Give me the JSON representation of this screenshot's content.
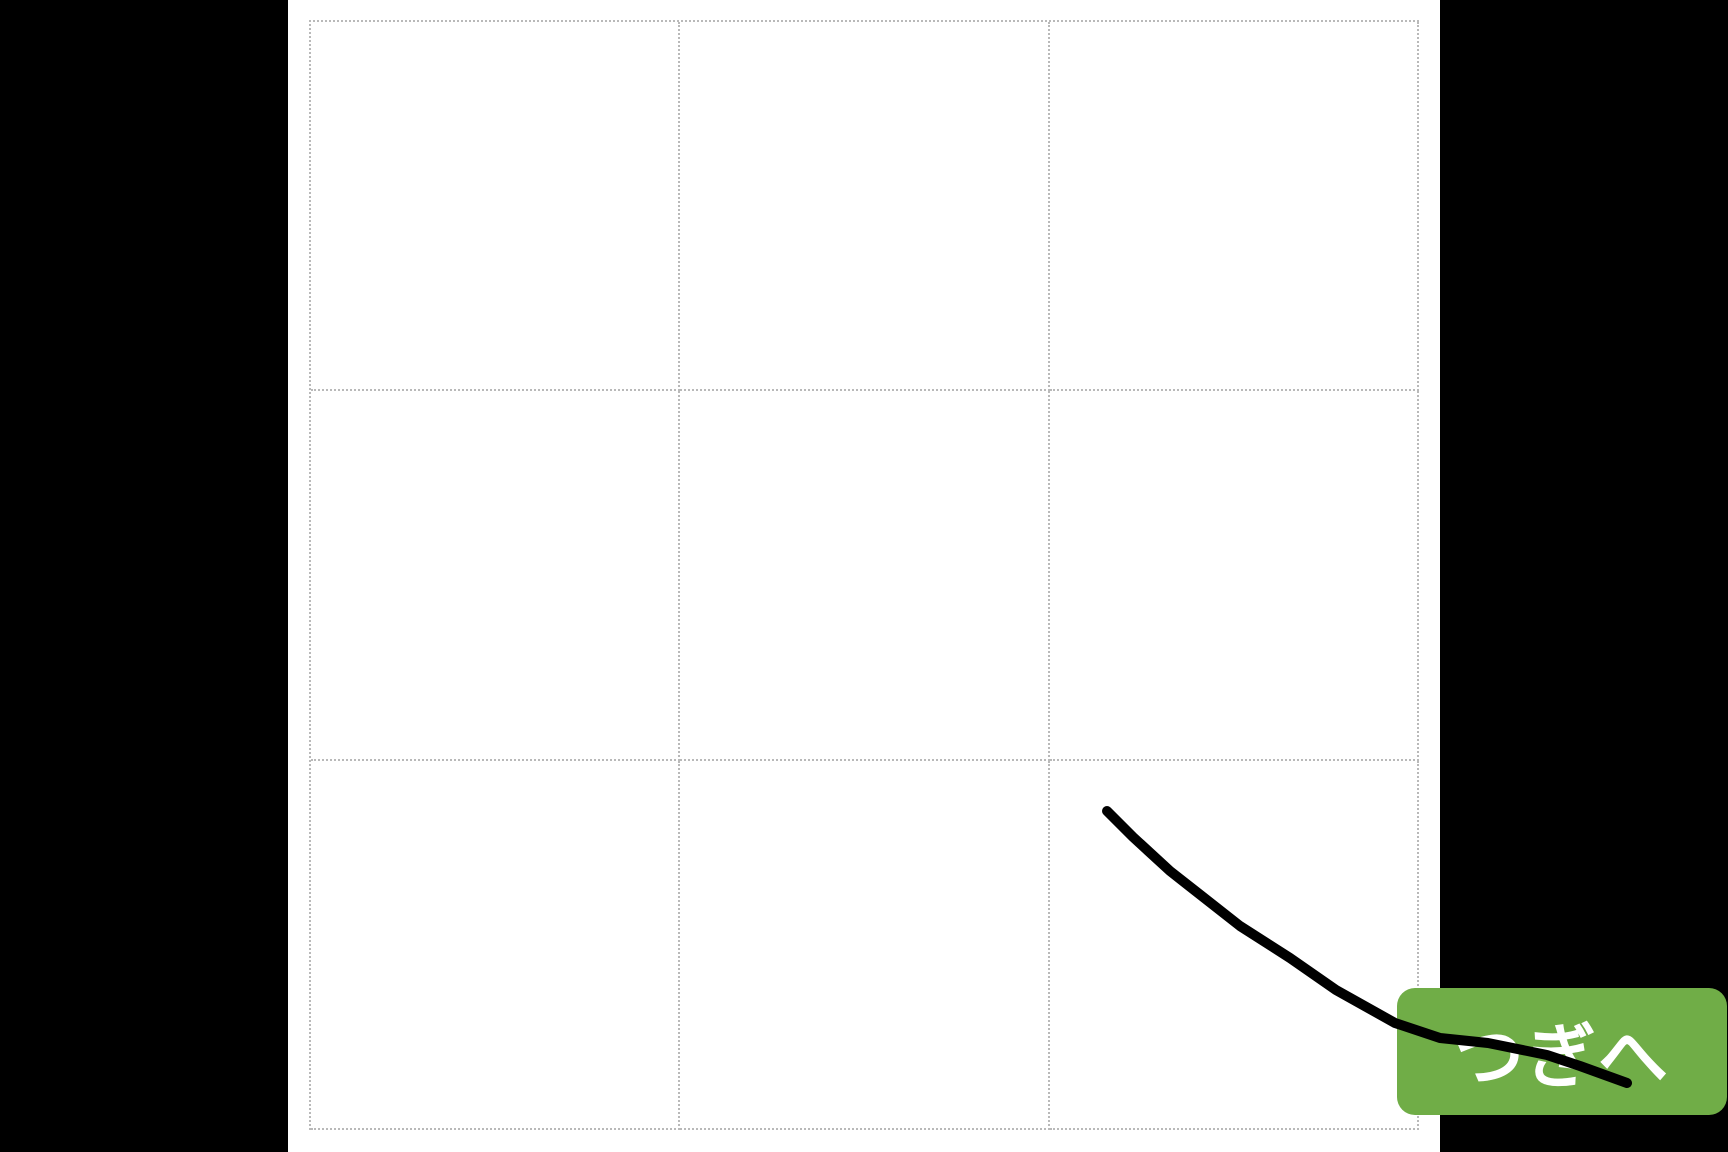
{
  "colors": {
    "background": "#000000",
    "canvas": "#ffffff",
    "grid_line": "#b9b9b9",
    "ink": "#000000",
    "next_button": "#70ad47",
    "next_button_text": "#ffffff"
  },
  "grid": {
    "rows": 3,
    "columns": 3
  },
  "next_button": {
    "label": "つぎへ",
    "icon": "none"
  }
}
